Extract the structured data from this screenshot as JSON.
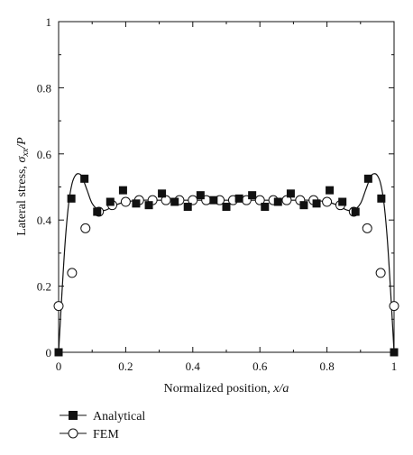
{
  "chart_data": {
    "type": "line",
    "xlabel_text": "Normalized position, ",
    "xlabel_var": "x/a",
    "ylabel_text": "Lateral stress, ",
    "ylabel_sigma": "σ",
    "ylabel_sub": "xx",
    "ylabel_tail": "/P",
    "xlim": [
      0,
      1
    ],
    "ylim": [
      0,
      1
    ],
    "x_ticks": [
      0,
      0.2,
      0.4,
      0.6,
      0.8,
      1
    ],
    "x_tick_labels": [
      "0",
      "0.2",
      "0.4",
      "0.6",
      "0.8",
      "1"
    ],
    "y_ticks": [
      0,
      0.2,
      0.4,
      0.6,
      0.8,
      1
    ],
    "y_tick_labels": [
      "0",
      "0.2",
      "0.4",
      "0.6",
      "0.8",
      "1"
    ],
    "grid": false,
    "legend_position": "below-left",
    "series": [
      {
        "name": "Analytical",
        "marker": "filled-square",
        "x": [
          0,
          0.038,
          0.077,
          0.115,
          0.154,
          0.192,
          0.231,
          0.269,
          0.308,
          0.346,
          0.385,
          0.423,
          0.462,
          0.5,
          0.538,
          0.577,
          0.615,
          0.654,
          0.692,
          0.731,
          0.769,
          0.808,
          0.846,
          0.885,
          0.923,
          0.962,
          1.0
        ],
        "y": [
          0.0,
          0.465,
          0.525,
          0.425,
          0.455,
          0.49,
          0.45,
          0.445,
          0.48,
          0.455,
          0.44,
          0.475,
          0.46,
          0.44,
          0.465,
          0.475,
          0.44,
          0.455,
          0.48,
          0.445,
          0.45,
          0.49,
          0.455,
          0.425,
          0.525,
          0.465,
          0.0
        ]
      },
      {
        "name": "FEM",
        "marker": "open-circle",
        "x": [
          0,
          0.04,
          0.08,
          0.12,
          0.16,
          0.2,
          0.24,
          0.28,
          0.32,
          0.36,
          0.4,
          0.44,
          0.48,
          0.52,
          0.56,
          0.6,
          0.64,
          0.68,
          0.72,
          0.76,
          0.8,
          0.84,
          0.88,
          0.92,
          0.96,
          1.0
        ],
        "y": [
          0.14,
          0.24,
          0.375,
          0.425,
          0.445,
          0.455,
          0.46,
          0.46,
          0.46,
          0.46,
          0.46,
          0.46,
          0.46,
          0.46,
          0.46,
          0.46,
          0.46,
          0.46,
          0.46,
          0.46,
          0.455,
          0.445,
          0.425,
          0.375,
          0.24,
          0.14
        ]
      },
      {
        "role": "fitted-curve",
        "x": [
          0,
          0.01,
          0.02,
          0.03,
          0.04,
          0.05,
          0.06,
          0.07,
          0.085,
          0.1,
          0.12,
          0.14,
          0.17,
          0.2,
          0.25,
          0.3,
          0.4,
          0.5,
          0.6,
          0.7,
          0.75,
          0.8,
          0.83,
          0.86,
          0.88,
          0.9,
          0.915,
          0.93,
          0.94,
          0.95,
          0.96,
          0.97,
          0.98,
          0.99,
          1.0
        ],
        "y": [
          0.0,
          0.18,
          0.34,
          0.45,
          0.51,
          0.535,
          0.54,
          0.53,
          0.49,
          0.45,
          0.43,
          0.43,
          0.445,
          0.455,
          0.46,
          0.46,
          0.46,
          0.46,
          0.46,
          0.46,
          0.46,
          0.455,
          0.445,
          0.43,
          0.43,
          0.45,
          0.49,
          0.53,
          0.54,
          0.535,
          0.51,
          0.45,
          0.34,
          0.18,
          0.0
        ]
      }
    ]
  }
}
